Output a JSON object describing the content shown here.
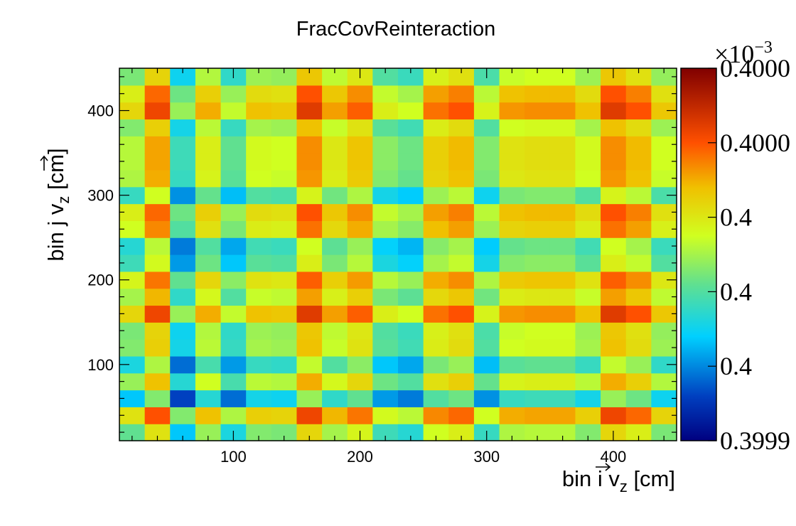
{
  "chart_data": {
    "type": "heatmap",
    "title": "FracCovReinteraction",
    "xlabel": "bin i v",
    "xlabel_sub": "z",
    "xlabel_unit": " [cm]",
    "ylabel": "bin j v",
    "ylabel_sub": "z",
    "ylabel_unit": " [cm]",
    "xlim": [
      10,
      450
    ],
    "ylim": [
      10,
      450
    ],
    "x_ticks": [
      100,
      200,
      300,
      400
    ],
    "y_ticks": [
      100,
      200,
      300,
      400
    ],
    "n_bins": 22,
    "colorbar": {
      "exponent_label": "×10",
      "exponent_power": "−3",
      "tick_labels": [
        "0.3999",
        "0.4",
        "0.4",
        "0.4",
        "0.4000",
        "0.4000"
      ],
      "range": [
        0,
        1
      ]
    },
    "bin_weights": [
      0.42,
      0.8,
      0.12,
      0.55,
      0.22,
      0.5,
      0.48,
      0.85,
      0.58,
      0.72,
      0.32,
      0.25,
      0.68,
      0.75,
      0.3,
      0.6,
      0.62,
      0.62,
      0.5,
      0.85,
      0.75,
      0.48
    ],
    "values_note": ""
  }
}
